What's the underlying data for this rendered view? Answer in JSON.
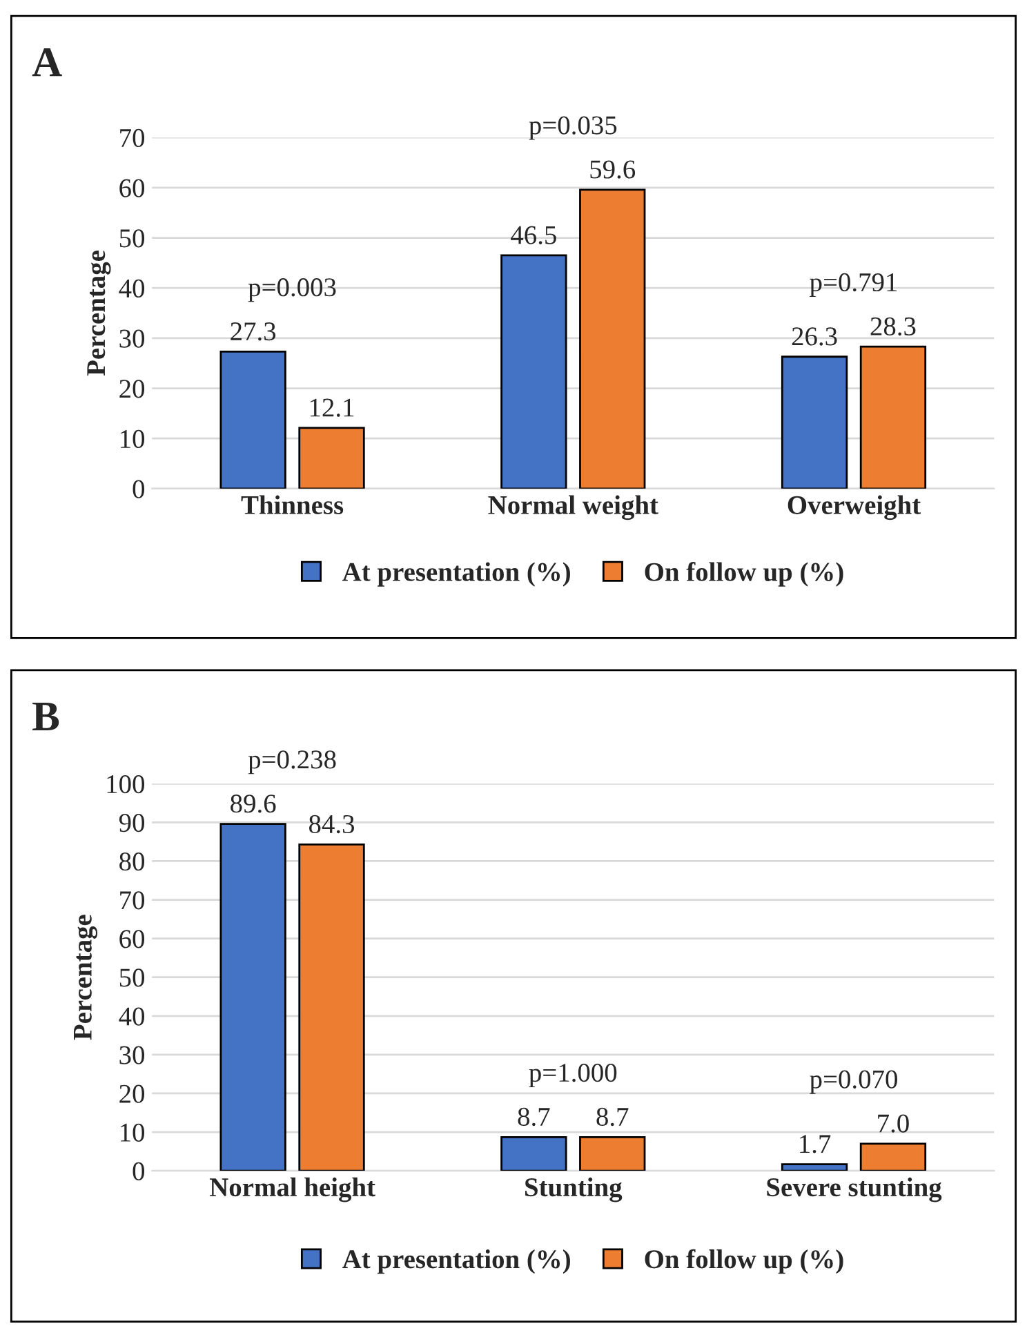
{
  "chart_data": [
    {
      "type": "bar",
      "title": "A",
      "ylabel": "Percentage",
      "categories": [
        "Thinness",
        "Normal weight",
        "Overweight"
      ],
      "series": [
        {
          "name": "At presentation (%)",
          "color": "#4472c4",
          "values": [
            27.3,
            46.5,
            26.3
          ],
          "value_labels": [
            "27.3",
            "46.5",
            "26.3"
          ]
        },
        {
          "name": "On follow up (%)",
          "color": "#ed7d31",
          "values": [
            12.1,
            59.6,
            28.3
          ],
          "value_labels": [
            "12.1",
            "59.6",
            "28.3"
          ]
        }
      ],
      "ylim": [
        0,
        70
      ],
      "yticks": [
        0,
        10,
        20,
        30,
        40,
        50,
        60,
        70
      ],
      "grid": "y",
      "legend": "bottom",
      "annotations": [
        "p=0.003",
        "p=0.035",
        "p=0.791"
      ]
    },
    {
      "type": "bar",
      "title": "B",
      "ylabel": "Percentage",
      "categories": [
        "Normal height",
        "Stunting",
        "Severe stunting"
      ],
      "series": [
        {
          "name": "At presentation (%)",
          "color": "#4472c4",
          "values": [
            89.6,
            8.7,
            1.7
          ],
          "value_labels": [
            "89.6",
            "8.7",
            "1.7"
          ]
        },
        {
          "name": "On follow up (%)",
          "color": "#ed7d31",
          "values": [
            84.3,
            8.7,
            7.0
          ],
          "value_labels": [
            "84.3",
            "8.7",
            "7.0"
          ]
        }
      ],
      "ylim": [
        0,
        100
      ],
      "yticks": [
        0,
        10,
        20,
        30,
        40,
        50,
        60,
        70,
        80,
        90,
        100
      ],
      "grid": "y",
      "legend": "bottom",
      "annotations": [
        "p=0.238",
        "p=1.000",
        "p=0.070"
      ]
    }
  ]
}
